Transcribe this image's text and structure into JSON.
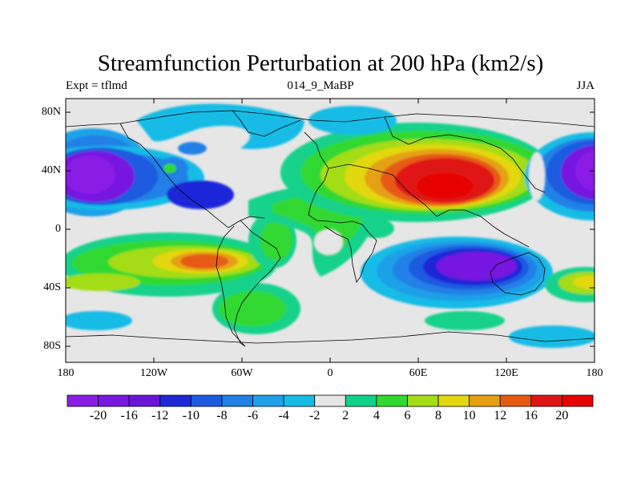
{
  "map": {
    "title": "Streamfunction Perturbation at 200 hPa (km2/s)",
    "left_label": "Expt = tflmd",
    "center_label": "014_9_MaBP",
    "right_label": "JJA",
    "lat_ticks": [
      "80N",
      "40N",
      "0",
      "40S",
      "80S"
    ],
    "lon_ticks": [
      "180",
      "120W",
      "60W",
      "0",
      "60E",
      "120E",
      "180"
    ],
    "background_color": "#e6e6e6"
  },
  "colorbar": {
    "levels": [
      "-20",
      "-16",
      "-12",
      "-10",
      "-8",
      "-6",
      "-4",
      "-2",
      "2",
      "4",
      "6",
      "8",
      "10",
      "12",
      "16",
      "20"
    ],
    "colors": [
      "#8a1ee6",
      "#7717e0",
      "#6a14d8",
      "#1e28d8",
      "#1e5ae0",
      "#2080e6",
      "#1fa0e8",
      "#16bce6",
      "#e6e6e6",
      "#12d28a",
      "#30d830",
      "#a4dc18",
      "#e2d810",
      "#e6a012",
      "#e65a12",
      "#e01616",
      "#e60000"
    ]
  }
}
